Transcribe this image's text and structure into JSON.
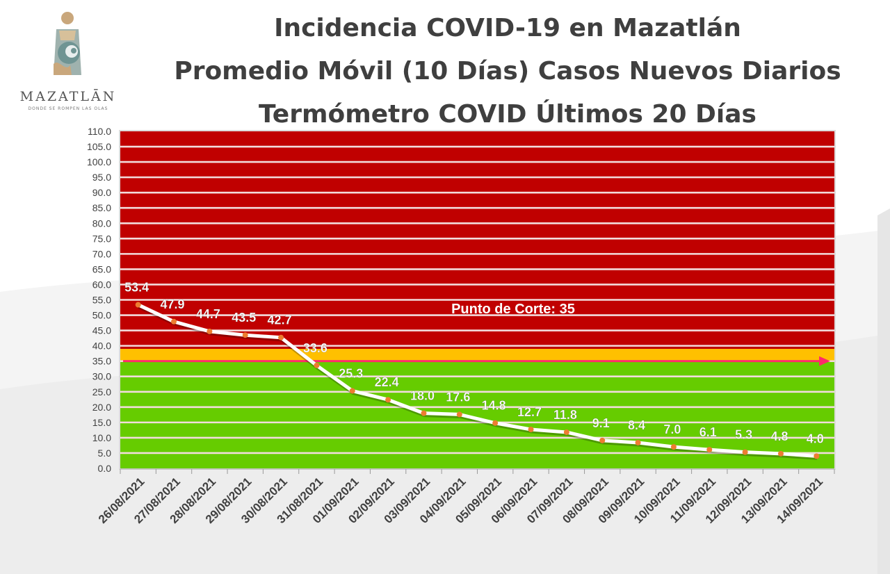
{
  "logo": {
    "name": "MAZATLĀN",
    "tagline": "DONDE SE ROMPEN LAS OLAS"
  },
  "titles": {
    "line1": "Incidencia COVID-19 en Mazatlán",
    "line2": "Promedio Móvil (10 Días) Casos Nuevos Diarios",
    "line3": "Termómetro COVID Últimos 20 Días"
  },
  "chart_data": {
    "type": "line",
    "title": "Incidencia COVID-19 en Mazatlán",
    "categories": [
      "26/08/2021",
      "27/08/2021",
      "28/08/2021",
      "29/08/2021",
      "30/08/2021",
      "31/08/2021",
      "01/09/2021",
      "02/09/2021",
      "03/09/2021",
      "04/09/2021",
      "05/09/2021",
      "06/09/2021",
      "07/09/2021",
      "08/09/2021",
      "09/09/2021",
      "10/09/2021",
      "11/09/2021",
      "12/09/2021",
      "13/09/2021",
      "14/09/2021"
    ],
    "values": [
      53.4,
      47.9,
      44.7,
      43.5,
      42.7,
      33.6,
      25.3,
      22.4,
      18.0,
      17.6,
      14.8,
      12.7,
      11.8,
      9.1,
      8.4,
      7.0,
      6.1,
      5.3,
      4.8,
      4.0
    ],
    "data_labels": [
      "53.4",
      "47.9",
      "44.7",
      "43.5",
      "42.7",
      "33.6",
      "25.3",
      "22.4",
      "18.0",
      "17.6",
      "14.8",
      "12.7",
      "11.8",
      "9.1",
      "8.4",
      "7.0",
      "6.1",
      "5.3",
      "4.8",
      "4.0"
    ],
    "ylim": [
      0,
      110
    ],
    "y_ticks": [
      "0.0",
      "5.0",
      "10.0",
      "15.0",
      "20.0",
      "25.0",
      "30.0",
      "35.0",
      "40.0",
      "45.0",
      "50.0",
      "55.0",
      "60.0",
      "65.0",
      "70.0",
      "75.0",
      "80.0",
      "85.0",
      "90.0",
      "95.0",
      "100.0",
      "105.0",
      "110.0"
    ],
    "threshold": {
      "label": "Punto de Corte: 35",
      "value": 35
    },
    "zones": [
      {
        "name": "green",
        "from": 0,
        "to": 35,
        "color": "#66cc00"
      },
      {
        "name": "yellow",
        "from": 35,
        "to": 39,
        "color": "#ffc000"
      },
      {
        "name": "red",
        "from": 39,
        "to": 110,
        "color": "#c00000"
      }
    ],
    "colors": {
      "line": "#ffffff",
      "marker": "#ed7d31",
      "threshold_arrow": "#ff2a6a",
      "gridline": "#f2dcdc",
      "axis_text": "#404040"
    },
    "grid": true
  }
}
